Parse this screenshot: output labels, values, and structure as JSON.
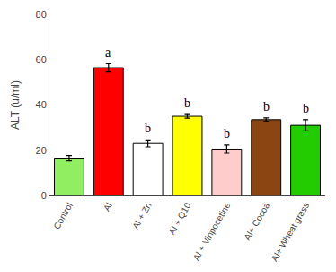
{
  "chart_data": {
    "type": "bar",
    "categories": [
      "Control",
      "Al",
      "Al + Zn",
      "Al + Q10",
      "Al + Vinpocetine",
      "Al+ Cocoa",
      "Al+ Wheat grass"
    ],
    "values": [
      16.5,
      56.5,
      23.0,
      35.0,
      20.5,
      33.5,
      31.0
    ],
    "errors": [
      1.2,
      1.8,
      1.5,
      0.8,
      1.8,
      0.8,
      2.5
    ],
    "colors": [
      "#90ee60",
      "#ff0000",
      "#ffffff",
      "#ffff00",
      "#ffcccc",
      "#8B4513",
      "#22cc00"
    ],
    "annotations": [
      {
        "category": "Al",
        "text": "a"
      },
      {
        "category": "Al + Zn",
        "text": "b"
      },
      {
        "category": "Al + Q10",
        "text": "b"
      },
      {
        "category": "Al + Vinpocetine",
        "text": "b"
      },
      {
        "category": "Al+ Cocoa",
        "text": "b"
      },
      {
        "category": "Al+ Wheat grass",
        "text": "b"
      }
    ],
    "ylabel": "ALT (u/ml)",
    "ylim": [
      0,
      80
    ],
    "yticks": [
      0,
      20,
      40,
      60,
      80
    ],
    "grid": false
  }
}
